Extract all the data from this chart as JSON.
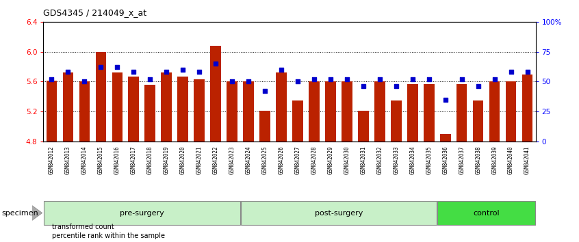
{
  "title": "GDS4345 / 214049_x_at",
  "samples": [
    "GSM842012",
    "GSM842013",
    "GSM842014",
    "GSM842015",
    "GSM842016",
    "GSM842017",
    "GSM842018",
    "GSM842019",
    "GSM842020",
    "GSM842021",
    "GSM842022",
    "GSM842023",
    "GSM842024",
    "GSM842025",
    "GSM842026",
    "GSM842027",
    "GSM842028",
    "GSM842029",
    "GSM842030",
    "GSM842031",
    "GSM842032",
    "GSM842033",
    "GSM842034",
    "GSM842035",
    "GSM842036",
    "GSM842037",
    "GSM842038",
    "GSM842039",
    "GSM842040",
    "GSM842041"
  ],
  "bar_values": [
    5.61,
    5.72,
    5.6,
    6.0,
    5.72,
    5.67,
    5.56,
    5.72,
    5.67,
    5.63,
    6.08,
    5.6,
    5.6,
    5.21,
    5.72,
    5.35,
    5.6,
    5.6,
    5.6,
    5.21,
    5.6,
    5.35,
    5.57,
    5.57,
    4.9,
    5.57,
    5.35,
    5.6,
    5.6,
    5.7
  ],
  "dot_values": [
    52,
    58,
    50,
    62,
    62,
    58,
    52,
    58,
    60,
    58,
    65,
    50,
    50,
    42,
    60,
    50,
    52,
    52,
    52,
    46,
    52,
    46,
    52,
    52,
    35,
    52,
    46,
    52,
    58,
    58
  ],
  "ylim": [
    4.8,
    6.4
  ],
  "yticks": [
    4.8,
    5.2,
    5.6,
    6.0,
    6.4
  ],
  "right_yticks": [
    0,
    25,
    50,
    75,
    100
  ],
  "right_ylabels": [
    "0",
    "25",
    "50",
    "75",
    "100%"
  ],
  "bar_color": "#bb2200",
  "dot_color": "#0000cc",
  "grid_lines": [
    5.2,
    5.6,
    6.0
  ],
  "groups": [
    {
      "label": "pre-surgery",
      "start": 0,
      "end": 12,
      "color": "#c8f0c8"
    },
    {
      "label": "post-surgery",
      "start": 12,
      "end": 24,
      "color": "#c8f0c8"
    },
    {
      "label": "control",
      "start": 24,
      "end": 30,
      "color": "#44dd44"
    }
  ],
  "specimen_label": "specimen",
  "legend_labels": [
    "transformed count",
    "percentile rank within the sample"
  ],
  "legend_colors": [
    "#bb2200",
    "#0000cc"
  ],
  "xtick_bg": "#d0d0d0",
  "group_border_color": "#888888"
}
